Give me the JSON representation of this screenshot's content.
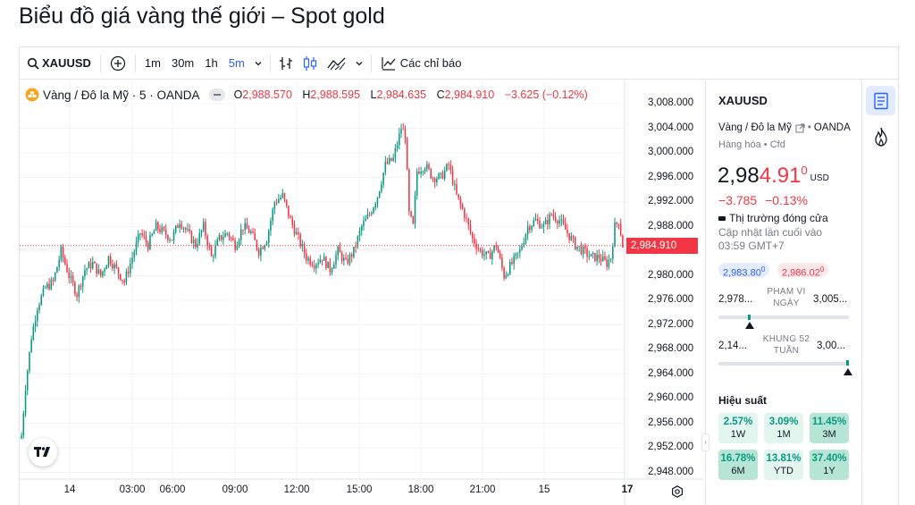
{
  "page_title": "Biểu đồ giá vàng thế giới – Spot gold",
  "toolbar": {
    "symbol": "XAUUSD",
    "intervals": [
      "1m",
      "30m",
      "1h",
      "5m"
    ],
    "active_interval": "5m",
    "indicators_label": "Các chỉ báo"
  },
  "legend": {
    "name": "Vàng / Đô la Mỹ · 5 · OANDA",
    "o_label": "O",
    "o_value": "2,988.570",
    "h_label": "H",
    "h_value": "2,988.595",
    "l_label": "L",
    "l_value": "2,984.635",
    "c_label": "C",
    "c_value": "2,984.910",
    "change": "−3.625 (−0.12%)"
  },
  "y_axis": {
    "ticks": [
      "3,008.000",
      "3,004.000",
      "3,000.000",
      "2,996.000",
      "2,992.000",
      "2,988.000",
      "2,984.000",
      "2,980.000",
      "2,976.000",
      "2,972.000",
      "2,968.000",
      "2,964.000",
      "2,960.000",
      "2,956.000",
      "2,952.000",
      "2,948.000"
    ],
    "current_price_label": "2,984.910"
  },
  "x_axis": {
    "ticks": [
      "14",
      "03:00",
      "06:00",
      "09:00",
      "12:00",
      "15:00",
      "18:00",
      "21:00",
      "15",
      "17"
    ]
  },
  "quote": {
    "symbol": "XAUUSD",
    "source": "Vàng / Đô la Mỹ",
    "exchange": "OANDA",
    "category": "Hàng hóa",
    "type": "Cfd",
    "price_main": "2,98",
    "price_bold": "4.91",
    "price_sup": "0",
    "currency": "USD",
    "change_abs": "−3.785",
    "change_pct": "−0.13%",
    "market_status": "Thị trường đóng cửa",
    "updated_line1": "Cập nhật lần cuối vào",
    "updated_line2": "03:59 GMT+7",
    "bid_main": "2,983.80",
    "bid_sup": "0",
    "ask_main": "2,986.02",
    "ask_sup": "0",
    "day_range_low": "2,978...",
    "day_range_label_1": "PHẠM VI",
    "day_range_label_2": "NGÀY",
    "day_range_high": "3,005...",
    "week52_low": "2,14...",
    "week52_label_1": "KHUNG 52",
    "week52_label_2": "TUẦN",
    "week52_high": "3,00...",
    "performance_title": "Hiệu suất",
    "performance": [
      {
        "value": "2.57%",
        "label": "1W"
      },
      {
        "value": "3.09%",
        "label": "1M"
      },
      {
        "value": "11.45%",
        "label": "3M"
      },
      {
        "value": "16.78%",
        "label": "6M"
      },
      {
        "value": "13.81%",
        "label": "YTD"
      },
      {
        "value": "37.40%",
        "label": "1Y"
      }
    ]
  },
  "colors": {
    "up": "#089981",
    "down": "#f23645",
    "accent": "#2962ff",
    "perf_light": "#e3f5ef",
    "perf_dark": "#b7e5d5"
  },
  "chart_data": {
    "type": "candlestick",
    "interval": "5m",
    "ylim": [
      2946,
      3010
    ],
    "last_price": 2984.91,
    "x": [
      "14",
      "03:00",
      "06:00",
      "09:00",
      "12:00",
      "15:00",
      "18:00",
      "21:00",
      "15",
      "17"
    ],
    "close_path": [
      [
        0,
        2954
      ],
      [
        2,
        2962
      ],
      [
        5,
        2970
      ],
      [
        8,
        2975
      ],
      [
        12,
        2978
      ],
      [
        16,
        2979
      ],
      [
        20,
        2984
      ],
      [
        24,
        2980
      ],
      [
        28,
        2977
      ],
      [
        32,
        2981
      ],
      [
        36,
        2982
      ],
      [
        40,
        2980
      ],
      [
        44,
        2983
      ],
      [
        48,
        2981
      ],
      [
        52,
        2979
      ],
      [
        56,
        2983
      ],
      [
        60,
        2987
      ],
      [
        64,
        2985
      ],
      [
        68,
        2988
      ],
      [
        72,
        2987
      ],
      [
        76,
        2986
      ],
      [
        80,
        2989
      ],
      [
        84,
        2987
      ],
      [
        88,
        2985
      ],
      [
        92,
        2988
      ],
      [
        96,
        2983
      ],
      [
        100,
        2986
      ],
      [
        104,
        2987
      ],
      [
        108,
        2985
      ],
      [
        112,
        2988
      ],
      [
        116,
        2987
      ],
      [
        120,
        2984
      ],
      [
        124,
        2986
      ],
      [
        128,
        2992
      ],
      [
        132,
        2993
      ],
      [
        136,
        2989
      ],
      [
        140,
        2986
      ],
      [
        144,
        2983
      ],
      [
        148,
        2982
      ],
      [
        152,
        2983
      ],
      [
        156,
        2981
      ],
      [
        160,
        2984
      ],
      [
        164,
        2982
      ],
      [
        168,
        2984
      ],
      [
        172,
        2988
      ],
      [
        176,
        2990
      ],
      [
        180,
        2993
      ],
      [
        184,
        2998
      ],
      [
        188,
        2999
      ],
      [
        192,
        3004
      ],
      [
        194,
        3003
      ],
      [
        196,
        2990
      ],
      [
        198,
        2988
      ],
      [
        200,
        2997
      ],
      [
        204,
        2998
      ],
      [
        208,
        2996
      ],
      [
        212,
        2996
      ],
      [
        216,
        2998
      ],
      [
        220,
        2993
      ],
      [
        224,
        2990
      ],
      [
        228,
        2986
      ],
      [
        232,
        2984
      ],
      [
        236,
        2983
      ],
      [
        240,
        2985
      ],
      [
        244,
        2980
      ],
      [
        248,
        2982
      ],
      [
        252,
        2984
      ],
      [
        256,
        2988
      ],
      [
        260,
        2989
      ],
      [
        264,
        2988
      ],
      [
        268,
        2990
      ],
      [
        272,
        2989
      ],
      [
        276,
        2987
      ],
      [
        280,
        2985
      ],
      [
        284,
        2984
      ],
      [
        288,
        2983
      ],
      [
        292,
        2983
      ],
      [
        296,
        2982
      ],
      [
        298,
        2983
      ],
      [
        300,
        2988
      ],
      [
        302,
        2989
      ],
      [
        304,
        2984.9
      ]
    ]
  }
}
